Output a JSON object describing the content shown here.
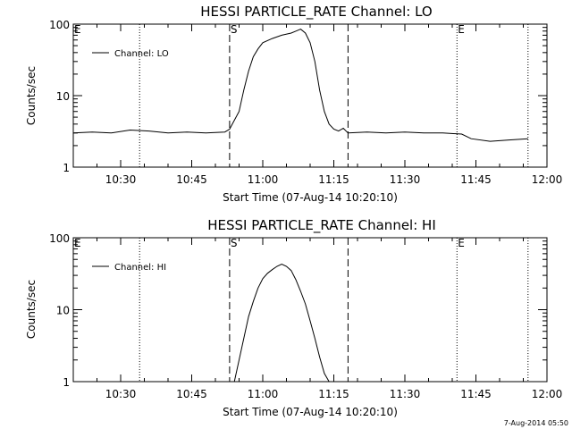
{
  "chart_data": [
    {
      "type": "line",
      "title": "HESSI PARTICLE_RATE Channel: LO",
      "xlabel": "Start Time (07-Aug-14 10:20:10)",
      "ylabel": "Counts/sec",
      "yscale": "log",
      "ylim": [
        1,
        100
      ],
      "xlim": [
        "10:20",
        "12:00"
      ],
      "x_ticks": [
        "10:30",
        "10:45",
        "11:00",
        "11:15",
        "11:30",
        "11:45",
        "12:00"
      ],
      "y_ticks": [
        "1",
        "10",
        "100"
      ],
      "legend": {
        "entries": [
          "Channel: LO"
        ],
        "position": "top-left"
      },
      "markers": [
        {
          "label": "E",
          "time": "10:20",
          "style": "none"
        },
        {
          "label": "",
          "time": "10:34",
          "style": "dotted"
        },
        {
          "label": "S",
          "time": "10:53",
          "style": "dashed"
        },
        {
          "label": "",
          "time": "11:18",
          "style": "dashed"
        },
        {
          "label": "E",
          "time": "11:41",
          "style": "dotted"
        },
        {
          "label": "",
          "time": "11:56",
          "style": "dotted"
        }
      ],
      "series": [
        {
          "name": "Channel: LO",
          "x": [
            "10:20",
            "10:24",
            "10:28",
            "10:32",
            "10:36",
            "10:40",
            "10:44",
            "10:48",
            "10:52",
            "10:53",
            "10:55",
            "10:56",
            "10:57",
            "10:58",
            "10:59",
            "11:00",
            "11:02",
            "11:04",
            "11:06",
            "11:07",
            "11:08",
            "11:09",
            "11:10",
            "11:11",
            "11:12",
            "11:13",
            "11:14",
            "11:15",
            "11:16",
            "11:17",
            "11:18",
            "11:22",
            "11:26",
            "11:30",
            "11:34",
            "11:38",
            "11:42",
            "11:44",
            "11:48",
            "11:52",
            "11:56"
          ],
          "y": [
            3,
            3.1,
            3,
            3.3,
            3.2,
            3,
            3.1,
            3,
            3.1,
            3.4,
            6,
            12,
            22,
            35,
            45,
            55,
            63,
            70,
            75,
            80,
            85,
            75,
            55,
            30,
            12,
            6,
            4,
            3.4,
            3.2,
            3.5,
            3,
            3.1,
            3,
            3.1,
            3,
            3,
            2.9,
            2.5,
            2.3,
            2.4,
            2.5
          ]
        }
      ]
    },
    {
      "type": "line",
      "title": "HESSI PARTICLE_RATE Channel: HI",
      "xlabel": "Start Time (07-Aug-14 10:20:10)",
      "ylabel": "Counts/sec",
      "yscale": "log",
      "ylim": [
        1,
        100
      ],
      "xlim": [
        "10:20",
        "12:00"
      ],
      "x_ticks": [
        "10:30",
        "10:45",
        "11:00",
        "11:15",
        "11:30",
        "11:45",
        "12:00"
      ],
      "y_ticks": [
        "1",
        "10",
        "100"
      ],
      "legend": {
        "entries": [
          "Channel: HI"
        ],
        "position": "top-left"
      },
      "markers": [
        {
          "label": "E",
          "time": "10:20",
          "style": "none"
        },
        {
          "label": "",
          "time": "10:34",
          "style": "dotted"
        },
        {
          "label": "S",
          "time": "10:53",
          "style": "dashed"
        },
        {
          "label": "",
          "time": "11:18",
          "style": "dashed"
        },
        {
          "label": "E",
          "time": "11:41",
          "style": "dotted"
        },
        {
          "label": "",
          "time": "11:56",
          "style": "dotted"
        }
      ],
      "series": [
        {
          "name": "Channel: HI",
          "x": [
            "10:54",
            "10:55",
            "10:56",
            "10:57",
            "10:58",
            "10:59",
            "11:00",
            "11:01",
            "11:02",
            "11:03",
            "11:04",
            "11:05",
            "11:06",
            "11:07",
            "11:08",
            "11:09",
            "11:10",
            "11:11",
            "11:12",
            "11:13",
            "11:14"
          ],
          "y": [
            1.0,
            2.0,
            4.0,
            8,
            13,
            20,
            27,
            32,
            36,
            40,
            43,
            40,
            35,
            26,
            18,
            12,
            7,
            4,
            2.2,
            1.3,
            1.0
          ]
        }
      ]
    }
  ],
  "footer": {
    "date": "7-Aug-2014 05:50"
  }
}
